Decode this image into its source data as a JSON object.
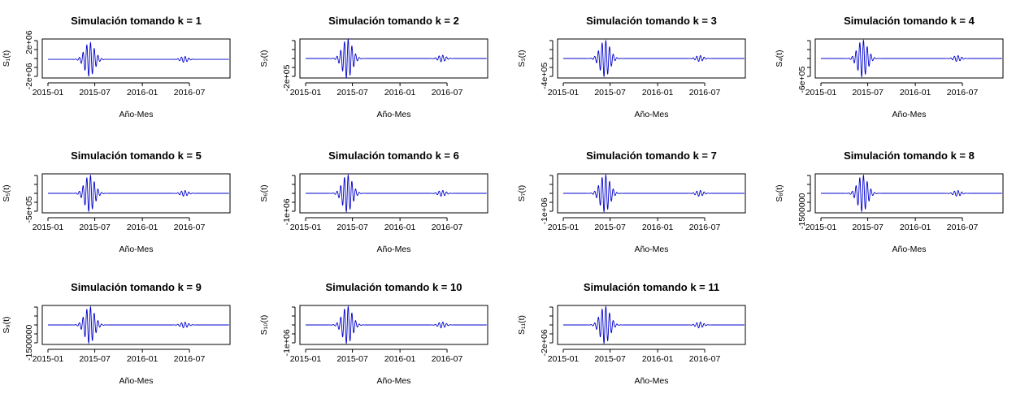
{
  "chart_data": [
    {
      "type": "line",
      "title": "Simulación tomando  k = 1",
      "xlabel": "Año-Mes",
      "ylabel": "S₁(t)",
      "x_tick_labels": [
        "2015-01",
        "2015-07",
        "2016-01",
        "2016-07"
      ],
      "y_tick_labels": [
        "-2e+06",
        "2e+06"
      ],
      "y_ticks": [
        -2000000,
        2000000
      ],
      "ylim": [
        -2200000,
        2400000
      ],
      "series": [
        {
          "color": "#0000cc",
          "peaks": [
            {
              "center": "2015-06",
              "amplitude": 2000000,
              "width_days": 40
            },
            {
              "center": "2016-06",
              "amplitude": 350000,
              "width_days": 30
            }
          ]
        }
      ]
    },
    {
      "type": "line",
      "title": "Simulación tomando  k = 2",
      "xlabel": "Año-Mes",
      "ylabel": "S₂(t)",
      "x_tick_labels": [
        "2015-01",
        "2015-07",
        "2016-01",
        "2016-07"
      ],
      "y_tick_labels": [
        "-2e+05"
      ],
      "y_ticks": [
        -200000
      ],
      "ylim": [
        -200000,
        200000
      ],
      "series": [
        {
          "color": "#0000cc",
          "peaks": [
            {
              "center": "2015-06",
              "amplitude": 200000,
              "width_days": 40
            },
            {
              "center": "2016-06",
              "amplitude": 35000,
              "width_days": 30
            }
          ]
        }
      ]
    },
    {
      "type": "line",
      "title": "Simulación tomando  k = 3",
      "xlabel": "Año-Mes",
      "ylabel": "S₃(t)",
      "x_tick_labels": [
        "2015-01",
        "2015-07",
        "2016-01",
        "2016-07"
      ],
      "y_tick_labels": [
        "-4e+05"
      ],
      "y_ticks": [
        -400000
      ],
      "ylim": [
        -450000,
        450000
      ],
      "series": [
        {
          "color": "#0000cc",
          "peaks": [
            {
              "center": "2015-06",
              "amplitude": 420000,
              "width_days": 40
            },
            {
              "center": "2016-06",
              "amplitude": 70000,
              "width_days": 30
            }
          ]
        }
      ]
    },
    {
      "type": "line",
      "title": "Simulación tomando  k = 4",
      "xlabel": "Año-Mes",
      "ylabel": "S₄(t)",
      "x_tick_labels": [
        "2015-01",
        "2015-07",
        "2016-01",
        "2016-07"
      ],
      "y_tick_labels": [
        "-6e+05"
      ],
      "y_ticks": [
        -600000
      ],
      "ylim": [
        -550000,
        550000
      ],
      "series": [
        {
          "color": "#0000cc",
          "peaks": [
            {
              "center": "2015-06",
              "amplitude": 520000,
              "width_days": 40
            },
            {
              "center": "2016-06",
              "amplitude": 85000,
              "width_days": 30
            }
          ]
        }
      ]
    },
    {
      "type": "line",
      "title": "Simulación tomando  k = 5",
      "xlabel": "Año-Mes",
      "ylabel": "S₅(t)",
      "x_tick_labels": [
        "2015-01",
        "2015-07",
        "2016-01",
        "2016-07"
      ],
      "y_tick_labels": [
        "-5e+05"
      ],
      "y_ticks": [
        -500000
      ],
      "ylim": [
        -600000,
        600000
      ],
      "series": [
        {
          "color": "#0000cc",
          "peaks": [
            {
              "center": "2015-06",
              "amplitude": 560000,
              "width_days": 40
            },
            {
              "center": "2016-06",
              "amplitude": 90000,
              "width_days": 30
            }
          ]
        }
      ]
    },
    {
      "type": "line",
      "title": "Simulación tomando  k = 6",
      "xlabel": "Año-Mes",
      "ylabel": "S₆(t)",
      "x_tick_labels": [
        "2015-01",
        "2015-07",
        "2016-01",
        "2016-07"
      ],
      "y_tick_labels": [
        "-1e+06"
      ],
      "y_ticks": [
        -1000000
      ],
      "ylim": [
        -1050000,
        1050000
      ],
      "series": [
        {
          "color": "#0000cc",
          "peaks": [
            {
              "center": "2015-06",
              "amplitude": 1000000,
              "width_days": 40
            },
            {
              "center": "2016-06",
              "amplitude": 160000,
              "width_days": 30
            }
          ]
        }
      ]
    },
    {
      "type": "line",
      "title": "Simulación tomando  k = 7",
      "xlabel": "Año-Mes",
      "ylabel": "S₇(t)",
      "x_tick_labels": [
        "2015-01",
        "2015-07",
        "2016-01",
        "2016-07"
      ],
      "y_tick_labels": [
        "-1e+06"
      ],
      "y_ticks": [
        -1000000
      ],
      "ylim": [
        -1100000,
        1100000
      ],
      "series": [
        {
          "color": "#0000cc",
          "peaks": [
            {
              "center": "2015-06",
              "amplitude": 1050000,
              "width_days": 40
            },
            {
              "center": "2016-06",
              "amplitude": 170000,
              "width_days": 30
            }
          ]
        }
      ]
    },
    {
      "type": "line",
      "title": "Simulación tomando  k = 8",
      "xlabel": "Año-Mes",
      "ylabel": "S₈(t)",
      "x_tick_labels": [
        "2015-01",
        "2015-07",
        "2016-01",
        "2016-07"
      ],
      "y_tick_labels": [
        "-1500000"
      ],
      "y_ticks": [
        -1500000
      ],
      "ylim": [
        -1650000,
        1650000
      ],
      "series": [
        {
          "color": "#0000cc",
          "peaks": [
            {
              "center": "2015-06",
              "amplitude": 1550000,
              "width_days": 40
            },
            {
              "center": "2016-06",
              "amplitude": 250000,
              "width_days": 30
            }
          ]
        }
      ]
    },
    {
      "type": "line",
      "title": "Simulación tomando  k = 9",
      "xlabel": "Año-Mes",
      "ylabel": "S₉(t)",
      "x_tick_labels": [
        "2015-01",
        "2015-07",
        "2016-01",
        "2016-07"
      ],
      "y_tick_labels": [
        "-1500000"
      ],
      "y_ticks": [
        -1500000
      ],
      "ylim": [
        -1650000,
        1650000
      ],
      "series": [
        {
          "color": "#0000cc",
          "peaks": [
            {
              "center": "2015-06",
              "amplitude": 1550000,
              "width_days": 40
            },
            {
              "center": "2016-06",
              "amplitude": 250000,
              "width_days": 30
            }
          ]
        }
      ]
    },
    {
      "type": "line",
      "title": "Simulación tomando  k = 10",
      "xlabel": "Año-Mes",
      "ylabel": "S₁₀(t)",
      "x_tick_labels": [
        "2015-01",
        "2015-07",
        "2016-01",
        "2016-07"
      ],
      "y_tick_labels": [
        "-1e+06"
      ],
      "y_ticks": [
        -1000000
      ],
      "ylim": [
        -1100000,
        1100000
      ],
      "series": [
        {
          "color": "#0000cc",
          "peaks": [
            {
              "center": "2015-06",
              "amplitude": 1050000,
              "width_days": 40
            },
            {
              "center": "2016-06",
              "amplitude": 170000,
              "width_days": 30
            }
          ]
        }
      ]
    },
    {
      "type": "line",
      "title": "Simulación tomando  k = 11",
      "xlabel": "Año-Mes",
      "ylabel": "S₁₁(t)",
      "x_tick_labels": [
        "2015-01",
        "2015-07",
        "2016-01",
        "2016-07"
      ],
      "y_tick_labels": [
        "-2e+06"
      ],
      "y_ticks": [
        -2000000
      ],
      "ylim": [
        -2200000,
        2200000
      ],
      "series": [
        {
          "color": "#0000cc",
          "peaks": [
            {
              "center": "2015-06",
              "amplitude": 2100000,
              "width_days": 40
            },
            {
              "center": "2016-06",
              "amplitude": 340000,
              "width_days": 30
            }
          ]
        }
      ]
    }
  ]
}
